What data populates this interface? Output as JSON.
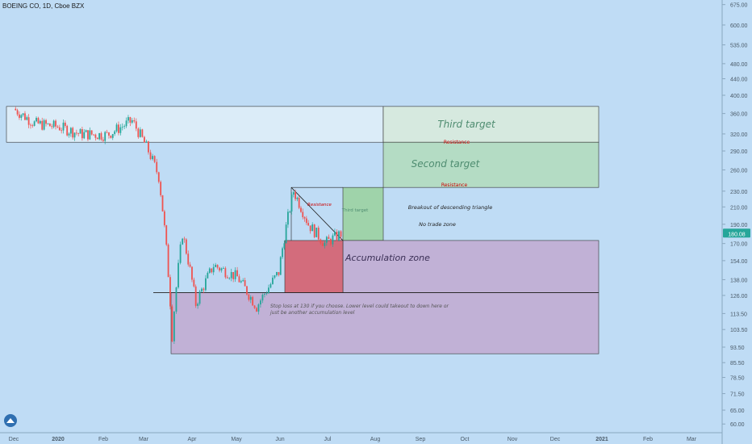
{
  "header": {
    "symbol": "BOEING CO, 1D, Cboe BZX"
  },
  "chart_data": {
    "type": "candlestick",
    "scale": "log",
    "y_ticks": [
      "675.00",
      "600.00",
      "535.00",
      "480.00",
      "440.00",
      "400.00",
      "360.00",
      "320.00",
      "290.00",
      "260.00",
      "230.00",
      "210.00",
      "190.00",
      "170.00",
      "154.00",
      "138.00",
      "126.00",
      "113.50",
      "103.50",
      "93.50",
      "85.50",
      "78.50",
      "71.50",
      "65.00",
      "60.00"
    ],
    "x_ticks": [
      "Dec",
      "2020",
      "Feb",
      "Mar",
      "Apr",
      "May",
      "Jun",
      "Jul",
      "Aug",
      "Sep",
      "Oct",
      "Nov",
      "Dec",
      "2021",
      "Feb",
      "Mar"
    ],
    "last_price_label": "180.08",
    "last_price": 180.08,
    "price_series": [
      {
        "date": "2019-12-02",
        "close": 370
      },
      {
        "date": "2019-12-16",
        "close": 340
      },
      {
        "date": "2020-01-02",
        "close": 333
      },
      {
        "date": "2020-01-16",
        "close": 320
      },
      {
        "date": "2020-02-03",
        "close": 318
      },
      {
        "date": "2020-02-20",
        "close": 345
      },
      {
        "date": "2020-03-02",
        "close": 290
      },
      {
        "date": "2020-03-09",
        "close": 250
      },
      {
        "date": "2020-03-18",
        "close": 100
      },
      {
        "date": "2020-03-25",
        "close": 180
      },
      {
        "date": "2020-04-03",
        "close": 120
      },
      {
        "date": "2020-04-15",
        "close": 150
      },
      {
        "date": "2020-05-01",
        "close": 140
      },
      {
        "date": "2020-05-14",
        "close": 118
      },
      {
        "date": "2020-05-29",
        "close": 144
      },
      {
        "date": "2020-06-08",
        "close": 230
      },
      {
        "date": "2020-06-18",
        "close": 190
      },
      {
        "date": "2020-06-29",
        "close": 170
      },
      {
        "date": "2020-07-10",
        "close": 180
      }
    ],
    "annotations": {
      "third_target": "Third target",
      "second_target": "Second target",
      "resistance_1": "Resistance",
      "resistance_2": "Resistance",
      "resistance_small": "Resistance",
      "third_target_small": "Third target",
      "breakout": "Breakout of descending triangle",
      "no_trade": "No trade zone",
      "accumulation": "Accumulation zone",
      "stop_loss_1": "Stop loss at 130 if you choose. Lower level could takeout to down here or",
      "stop_loss_2": "just be another accumulation level"
    },
    "colors": {
      "background": "#bfdcf5",
      "up": "#26a69a",
      "down": "#ef5350",
      "resistance_box": "#dbecf8",
      "green_box": "#b4dcc4",
      "purple_box": "#c1b1d6",
      "red_box": "#d36c7c",
      "last_price_tag": "#26a69a"
    }
  }
}
